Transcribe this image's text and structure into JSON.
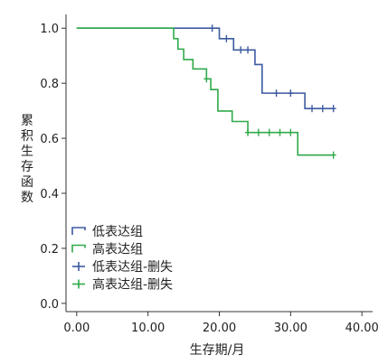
{
  "chart_data": {
    "type": "line",
    "title": "",
    "xlabel": "生存期/月",
    "ylabel": "累积生存函数",
    "xlim": [
      -1.5,
      41.5
    ],
    "ylim": [
      -0.03,
      1.05
    ],
    "x_ticks": [
      0,
      10,
      20,
      30,
      40
    ],
    "x_tick_labels": [
      "0.00",
      "10.00",
      "20.00",
      "30.00",
      "40.00"
    ],
    "y_ticks": [
      0,
      0.2,
      0.4,
      0.6,
      0.8,
      1.0
    ],
    "y_tick_labels": [
      "0.0",
      "0.2",
      "0.4",
      "0.6",
      "0.8",
      "1.0"
    ],
    "grid": false,
    "legend_position": "bottom-left",
    "series": [
      {
        "name": "低表达组",
        "color": "#3c5aa0",
        "style": "step",
        "steps": [
          [
            0,
            1.0
          ],
          [
            20,
            0.962
          ],
          [
            22,
            0.921
          ],
          [
            25,
            0.868
          ],
          [
            26,
            0.764
          ],
          [
            32,
            0.708
          ],
          [
            36,
            0.708
          ]
        ],
        "censor_x": [
          19,
          21,
          23,
          24,
          28,
          30,
          33,
          34.5,
          36
        ],
        "censor_label": "低表达组-删失"
      },
      {
        "name": "高表达组",
        "color": "#2faa4a",
        "style": "step",
        "steps": [
          [
            0,
            1.0
          ],
          [
            13.6,
            0.962
          ],
          [
            14.2,
            0.924
          ],
          [
            15,
            0.886
          ],
          [
            16.3,
            0.852
          ],
          [
            18.2,
            0.816
          ],
          [
            18.8,
            0.777
          ],
          [
            19.8,
            0.699
          ],
          [
            21.8,
            0.661
          ],
          [
            24,
            0.621
          ],
          [
            31,
            0.539
          ],
          [
            36,
            0.539
          ]
        ],
        "censor_x": [
          18.2,
          24,
          25.5,
          27,
          28.5,
          30,
          36
        ],
        "censor_label": "高表达组-删失"
      }
    ]
  }
}
